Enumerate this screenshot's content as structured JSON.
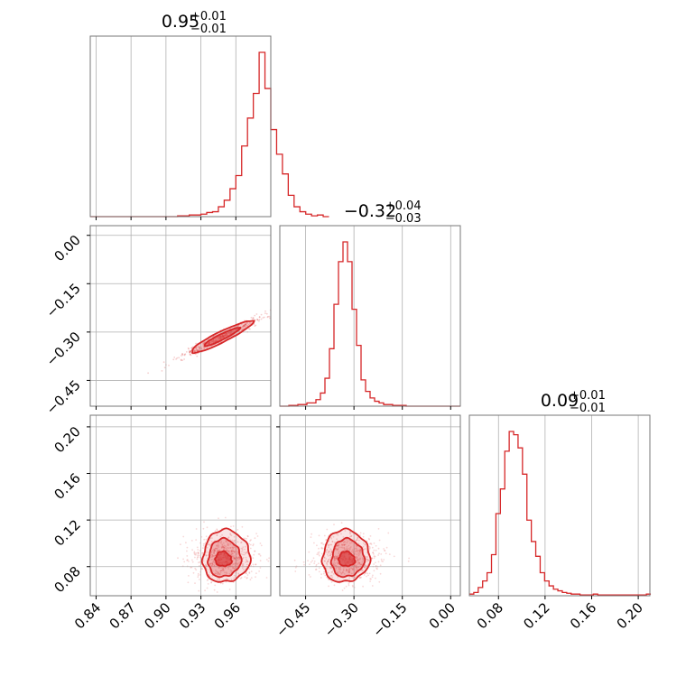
{
  "chart_data": {
    "type": "corner",
    "color": "#d62728",
    "grid": true,
    "parameters": [
      {
        "title": {
          "median": "0.95",
          "plus": "+0.01",
          "minus": "−0.01"
        },
        "range": [
          0.835,
          0.99
        ],
        "ticks": [
          0.84,
          0.87,
          0.9,
          0.93,
          0.96
        ],
        "tick_labels": [
          "0.84",
          "0.87",
          "0.90",
          "0.93",
          "0.96"
        ],
        "hist_start": 0.835,
        "hist_step": 0.005,
        "hist_values": [
          0,
          0,
          0,
          0,
          0,
          0,
          0,
          0,
          0,
          0,
          0,
          0,
          0,
          0,
          0,
          0.005,
          0.005,
          0.01,
          0.01,
          0.015,
          0.025,
          0.03,
          0.06,
          0.1,
          0.17,
          0.25,
          0.43,
          0.6,
          0.75,
          1.0,
          0.78,
          0.53,
          0.38,
          0.26,
          0.13,
          0.06,
          0.03,
          0.015,
          0.005,
          0.01,
          0.0
        ]
      },
      {
        "title": {
          "median": "−0.32",
          "plus": "+0.04",
          "minus": "−0.03"
        },
        "range": [
          -0.53,
          0.03
        ],
        "ticks": [
          -0.45,
          -0.3,
          -0.15,
          0.0
        ],
        "tick_labels": [
          "−0.45",
          "−0.30",
          "−0.15",
          "0.00"
        ],
        "hist_start": -0.53,
        "hist_step": 0.014,
        "hist_values": [
          0,
          0,
          0.005,
          0.005,
          0.01,
          0.01,
          0.02,
          0.02,
          0.04,
          0.08,
          0.17,
          0.35,
          0.62,
          0.88,
          1.0,
          0.88,
          0.59,
          0.37,
          0.16,
          0.09,
          0.05,
          0.03,
          0.02,
          0.01,
          0.01,
          0.005,
          0.005,
          0.005,
          0.0,
          0,
          0,
          0,
          0,
          0,
          0,
          0,
          0,
          0,
          0,
          0
        ]
      },
      {
        "title": {
          "median": "0.09",
          "plus": "+0.01",
          "minus": "−0.01"
        },
        "range": [
          0.055,
          0.21
        ],
        "ticks": [
          0.08,
          0.12,
          0.16,
          0.2
        ],
        "tick_labels": [
          "0.08",
          "0.12",
          "0.16",
          "0.20"
        ],
        "hist_start": 0.055,
        "hist_step": 0.0038,
        "hist_values": [
          0.01,
          0.02,
          0.05,
          0.09,
          0.14,
          0.25,
          0.5,
          0.65,
          0.88,
          1.0,
          0.98,
          0.9,
          0.74,
          0.46,
          0.33,
          0.24,
          0.14,
          0.09,
          0.06,
          0.04,
          0.03,
          0.02,
          0.015,
          0.01,
          0.01,
          0.005,
          0.005,
          0.005,
          0.01,
          0.005,
          0.005,
          0.005,
          0.005,
          0.005,
          0.005,
          0.005,
          0.005,
          0.005,
          0.005,
          0.005,
          0.01
        ]
      }
    ],
    "joint": [
      {
        "x_param": 0,
        "y_param": 1,
        "y_range": [
          -0.53,
          0.03
        ],
        "y_ticks": [
          0.0,
          -0.15,
          -0.3,
          -0.45
        ],
        "y_tick_labels": [
          "0.00",
          "−0.15",
          "−0.30",
          "−0.45"
        ],
        "center": [
          0.948,
          -0.315
        ],
        "shape": "narrow-diagonal",
        "contour_levels": 2
      },
      {
        "x_param": 0,
        "y_param": 2,
        "y_range": [
          0.055,
          0.21
        ],
        "y_ticks": [
          0.2,
          0.16,
          0.12,
          0.08
        ],
        "y_tick_labels": [
          "0.20",
          "0.16",
          "0.12",
          "0.08"
        ],
        "center": [
          0.95,
          0.088
        ],
        "shape": "blob",
        "contour_levels": 3
      },
      {
        "x_param": 1,
        "y_param": 2,
        "center": [
          -0.32,
          0.088
        ],
        "shape": "blob",
        "contour_levels": 3
      }
    ]
  }
}
